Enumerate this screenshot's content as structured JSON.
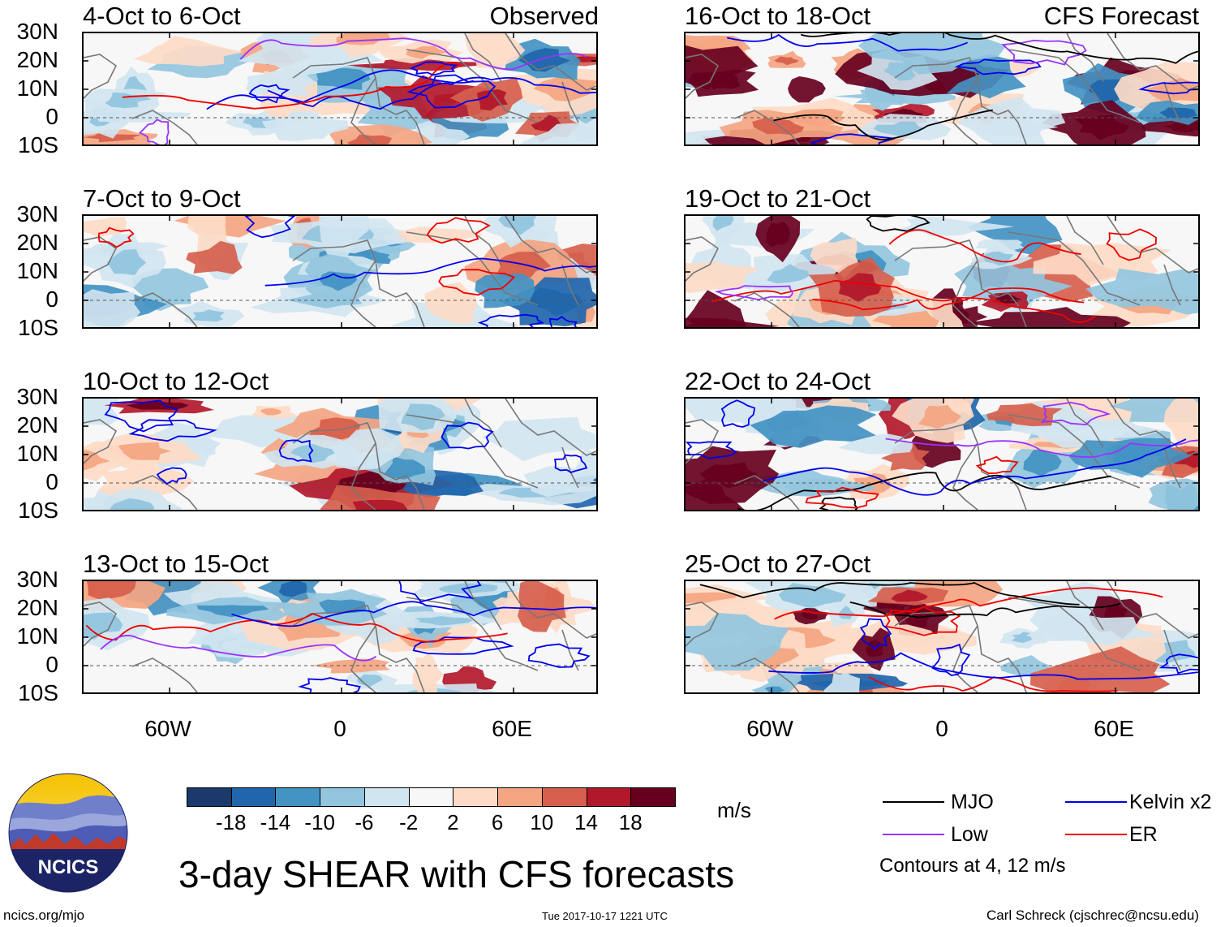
{
  "header": {
    "left_column_label": "Observed",
    "right_column_label": "CFS Forecast"
  },
  "panels_left": [
    {
      "title": "4-Oct to 6-Oct"
    },
    {
      "title": "7-Oct to 9-Oct"
    },
    {
      "title": "10-Oct to 12-Oct"
    },
    {
      "title": "13-Oct to 15-Oct"
    }
  ],
  "panels_right": [
    {
      "title": "16-Oct to 18-Oct"
    },
    {
      "title": "19-Oct to 21-Oct"
    },
    {
      "title": "22-Oct to 24-Oct"
    },
    {
      "title": "25-Oct to 27-Oct"
    }
  ],
  "lat_labels": [
    "30N",
    "20N",
    "10N",
    "0",
    "10S"
  ],
  "lon_labels": [
    "60W",
    "0",
    "60E"
  ],
  "colorbar": {
    "colors": [
      "#1b3a6b",
      "#2166ac",
      "#4393c3",
      "#92c5de",
      "#d1e5f0",
      "#f7f7f7",
      "#fddbc7",
      "#f4a582",
      "#d6604d",
      "#b2182b",
      "#67001f"
    ],
    "ticks": [
      "-18",
      "-14",
      "-10",
      "-6",
      "-2",
      "2",
      "6",
      "10",
      "14",
      "18"
    ],
    "unit": "m/s"
  },
  "legend": {
    "items": [
      {
        "label": "MJO",
        "color": "#000000"
      },
      {
        "label": "Kelvin x2",
        "color": "#0000ee"
      },
      {
        "label": "Low",
        "color": "#9933ff"
      },
      {
        "label": "ER",
        "color": "#ee0000"
      }
    ],
    "contour_note": "Contours at 4, 12 m/s"
  },
  "logo": {
    "text": "NCICS"
  },
  "title": "3-day SHEAR with CFS forecasts",
  "footer": {
    "left": "ncics.org/mjo",
    "center": "Tue 2017-10-17 1221 UTC",
    "right": "Carl Schreck (cjschrec@ncsu.edu)"
  }
}
